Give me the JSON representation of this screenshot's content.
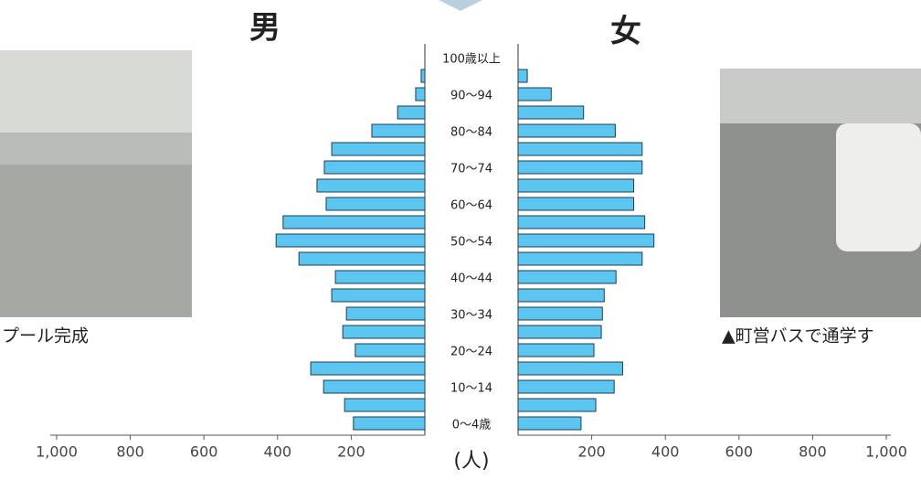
{
  "chart_data": {
    "type": "pyramid",
    "categories": [
      "0～4歳",
      null,
      "10～14",
      null,
      "20～24",
      null,
      "30～34",
      null,
      "40～44",
      null,
      "50～54",
      null,
      "60～64",
      null,
      "70～74",
      null,
      "80～84",
      null,
      "90～94",
      null,
      "100歳以上"
    ],
    "series": [
      {
        "name": "男",
        "color": "#5cc6f0",
        "values": [
          194,
          218,
          275,
          310,
          189,
          223,
          213,
          253,
          243,
          342,
          404,
          385,
          268,
          293,
          273,
          253,
          144,
          74,
          25,
          10,
          0
        ]
      },
      {
        "name": "女",
        "color": "#5cc6f0",
        "values": [
          171,
          211,
          261,
          284,
          206,
          226,
          229,
          234,
          266,
          337,
          369,
          344,
          314,
          314,
          337,
          337,
          264,
          178,
          90,
          25,
          0
        ]
      }
    ],
    "xlim": [
      0,
      1000
    ],
    "xticks": [
      200,
      400,
      600,
      800,
      {
        "value": 1000,
        "label": "1,000"
      }
    ],
    "x_label": "(人)"
  },
  "captions": [
    "プール完成",
    "▲町営バスで通学す"
  ]
}
